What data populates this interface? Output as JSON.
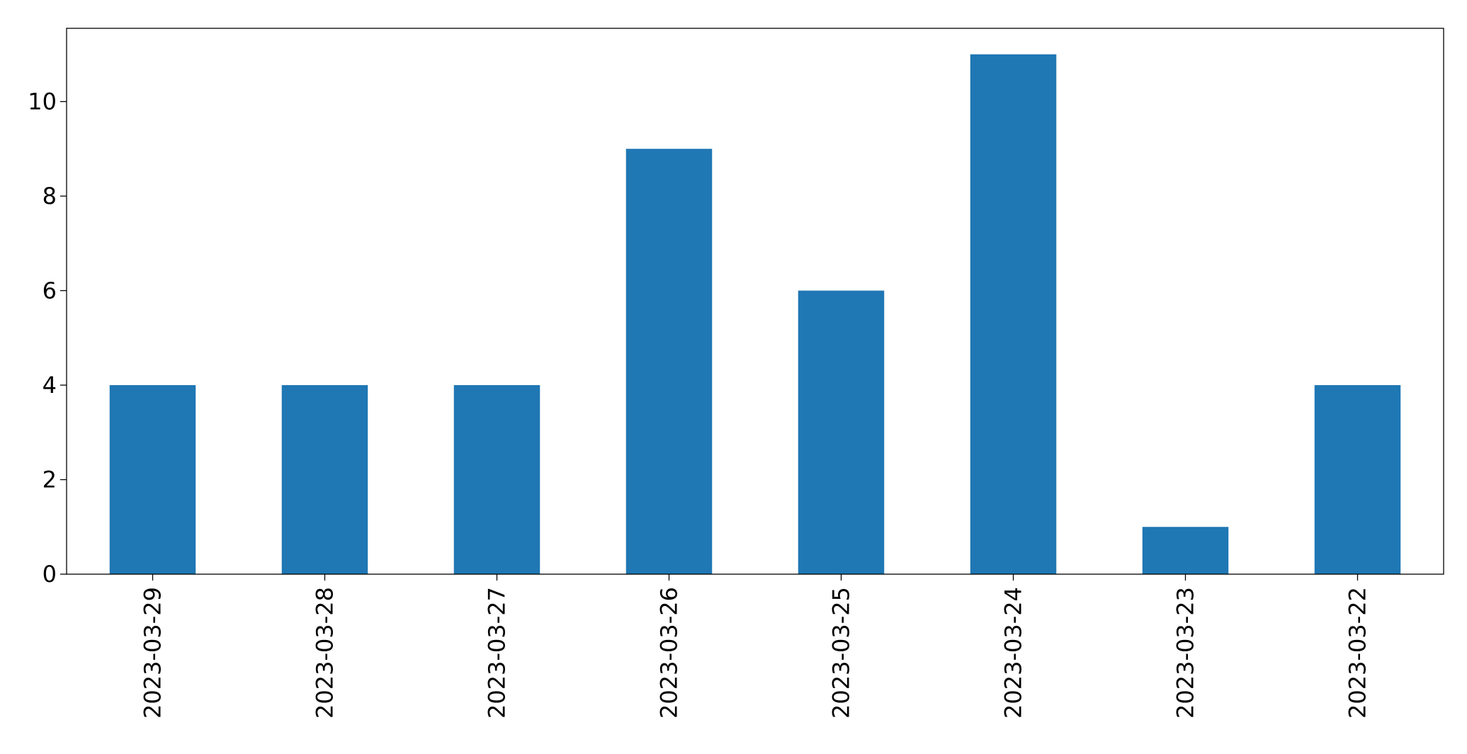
{
  "chart_data": {
    "type": "bar",
    "title": "",
    "xlabel": "",
    "ylabel": "",
    "categories": [
      "2023-03-29",
      "2023-03-28",
      "2023-03-27",
      "2023-03-26",
      "2023-03-25",
      "2023-03-24",
      "2023-03-23",
      "2023-03-22"
    ],
    "values": [
      4,
      4,
      4,
      9,
      6,
      11,
      1,
      4
    ],
    "ylim": [
      0,
      11.55
    ],
    "yticks": [
      0,
      2,
      4,
      6,
      8,
      10
    ],
    "grid": false,
    "legend": "none",
    "bar_color": "#1f77b4"
  }
}
